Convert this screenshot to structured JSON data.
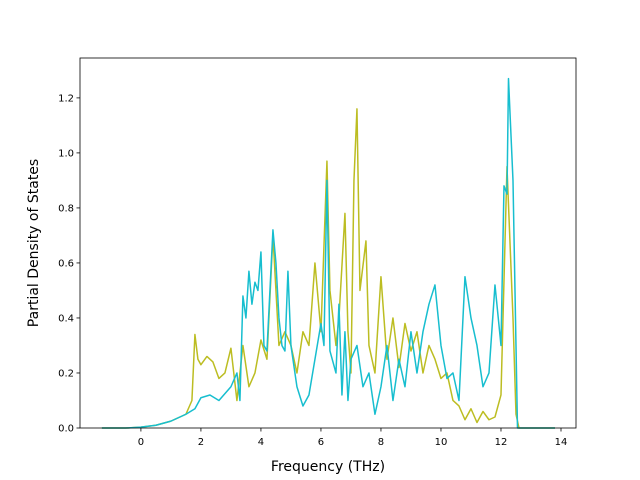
{
  "chart_data": {
    "type": "line",
    "xlabel": "Frequency (THz)",
    "ylabel": "Partial Density of States",
    "xlim": [
      -2.03,
      14.5
    ],
    "ylim": [
      0,
      1.345
    ],
    "xticks": [
      0,
      2,
      4,
      6,
      8,
      10,
      12,
      14
    ],
    "yticks": [
      {
        "value": 0,
        "label": "0.0"
      },
      0.2,
      0.4,
      0.6,
      0.8,
      {
        "value": 1,
        "label": "1.0"
      },
      1.2
    ],
    "grid": false,
    "series": [
      {
        "color": "#bcbd22",
        "x": [
          -1.3,
          -0.5,
          0,
          0.5,
          1.0,
          1.5,
          1.7,
          1.8,
          1.9,
          2.0,
          2.2,
          2.4,
          2.6,
          2.8,
          3.0,
          3.2,
          3.4,
          3.6,
          3.8,
          4.0,
          4.2,
          4.4,
          4.6,
          4.8,
          5.0,
          5.2,
          5.4,
          5.6,
          5.8,
          6.0,
          6.2,
          6.3,
          6.5,
          6.6,
          6.8,
          6.9,
          7.0,
          7.1,
          7.2,
          7.3,
          7.5,
          7.6,
          7.8,
          8.0,
          8.2,
          8.4,
          8.6,
          8.8,
          9.0,
          9.2,
          9.4,
          9.6,
          9.8,
          10.0,
          10.2,
          10.4,
          10.6,
          10.8,
          11.0,
          11.2,
          11.4,
          11.6,
          11.8,
          12.0,
          12.2,
          12.4,
          12.5,
          12.6,
          13.8
        ],
        "values": [
          0,
          0,
          0.003,
          0.01,
          0.025,
          0.05,
          0.1,
          0.34,
          0.25,
          0.23,
          0.26,
          0.24,
          0.18,
          0.2,
          0.29,
          0.1,
          0.3,
          0.15,
          0.2,
          0.32,
          0.25,
          0.7,
          0.3,
          0.35,
          0.3,
          0.2,
          0.35,
          0.3,
          0.6,
          0.35,
          0.97,
          0.5,
          0.3,
          0.4,
          0.78,
          0.35,
          0.2,
          0.9,
          1.16,
          0.5,
          0.68,
          0.3,
          0.2,
          0.55,
          0.25,
          0.4,
          0.22,
          0.38,
          0.28,
          0.35,
          0.2,
          0.3,
          0.25,
          0.18,
          0.2,
          0.1,
          0.08,
          0.03,
          0.07,
          0.02,
          0.06,
          0.03,
          0.04,
          0.12,
          0.95,
          0.4,
          0.05,
          0,
          0
        ]
      },
      {
        "color": "#17becf",
        "x": [
          -1.3,
          -0.5,
          0,
          0.5,
          1.0,
          1.5,
          1.8,
          2.0,
          2.3,
          2.6,
          3.0,
          3.2,
          3.3,
          3.4,
          3.5,
          3.6,
          3.7,
          3.8,
          3.9,
          4.0,
          4.1,
          4.2,
          4.4,
          4.5,
          4.6,
          4.7,
          4.8,
          4.9,
          5.0,
          5.2,
          5.4,
          5.6,
          5.8,
          6.0,
          6.1,
          6.2,
          6.3,
          6.5,
          6.6,
          6.7,
          6.8,
          6.9,
          7.0,
          7.2,
          7.4,
          7.6,
          7.8,
          8.0,
          8.2,
          8.4,
          8.6,
          8.8,
          9.0,
          9.2,
          9.4,
          9.6,
          9.8,
          10.0,
          10.2,
          10.4,
          10.6,
          10.8,
          11.0,
          11.2,
          11.4,
          11.6,
          11.8,
          12.0,
          12.1,
          12.2,
          12.25,
          12.4,
          12.5,
          12.55,
          13.8
        ],
        "values": [
          0,
          0,
          0.003,
          0.01,
          0.025,
          0.05,
          0.07,
          0.11,
          0.12,
          0.1,
          0.15,
          0.2,
          0.1,
          0.48,
          0.4,
          0.57,
          0.45,
          0.53,
          0.5,
          0.64,
          0.3,
          0.28,
          0.72,
          0.6,
          0.4,
          0.3,
          0.28,
          0.57,
          0.3,
          0.15,
          0.08,
          0.12,
          0.25,
          0.38,
          0.3,
          0.9,
          0.28,
          0.2,
          0.45,
          0.12,
          0.35,
          0.1,
          0.25,
          0.3,
          0.15,
          0.2,
          0.05,
          0.15,
          0.3,
          0.1,
          0.25,
          0.15,
          0.35,
          0.2,
          0.35,
          0.45,
          0.52,
          0.3,
          0.18,
          0.2,
          0.1,
          0.55,
          0.4,
          0.3,
          0.15,
          0.2,
          0.52,
          0.3,
          0.88,
          0.85,
          1.27,
          0.9,
          0.3,
          0,
          0
        ]
      }
    ]
  }
}
